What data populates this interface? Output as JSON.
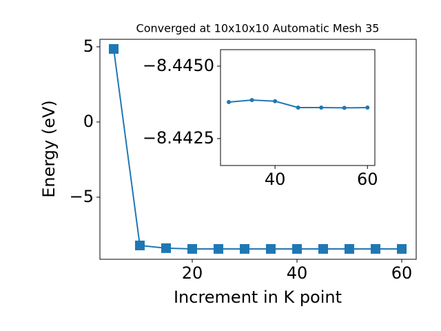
{
  "chart_data": [
    {
      "type": "line",
      "title": "Converged at 10x10x10 Automatic Mesh 35",
      "x_label": "Increment in K point",
      "y_label": "Energy (eV)",
      "x": [
        5,
        10,
        15,
        20,
        25,
        30,
        35,
        40,
        45,
        50,
        55,
        60
      ],
      "series": [
        {
          "name": "Energy",
          "color": "#1f77b4",
          "marker": "square",
          "values": [
            4.86,
            -8.21,
            -8.39,
            -8.44,
            -8.44,
            -8.44,
            -8.44,
            -8.44,
            -8.44,
            -8.44,
            -8.44,
            -8.44
          ]
        }
      ],
      "xlim": [
        2.37,
        62.76
      ],
      "ylim": [
        -9.13,
        5.5
      ],
      "xticks": [
        20,
        40,
        60
      ],
      "yticks": [
        {
          "value": -5,
          "label": "−5"
        },
        0,
        5
      ]
    },
    {
      "type": "line",
      "x": [
        30,
        35,
        40,
        45,
        50,
        55,
        60
      ],
      "series": [
        {
          "name": "Energy",
          "color": "#1f77b4",
          "marker": "circle",
          "values": [
            -8.44376,
            -8.44383,
            -8.44379,
            -8.44357,
            -8.44357,
            -8.44356,
            -8.44357
          ]
        }
      ],
      "xlim": [
        28.2,
        61.6
      ],
      "ylim": [
        -8.44157,
        -8.44557
      ],
      "xticks": [
        40,
        60
      ],
      "yticks": [
        {
          "value": -8.445,
          "label": "−8.4450"
        },
        {
          "value": -8.4425,
          "label": "−8.4425"
        }
      ]
    }
  ]
}
